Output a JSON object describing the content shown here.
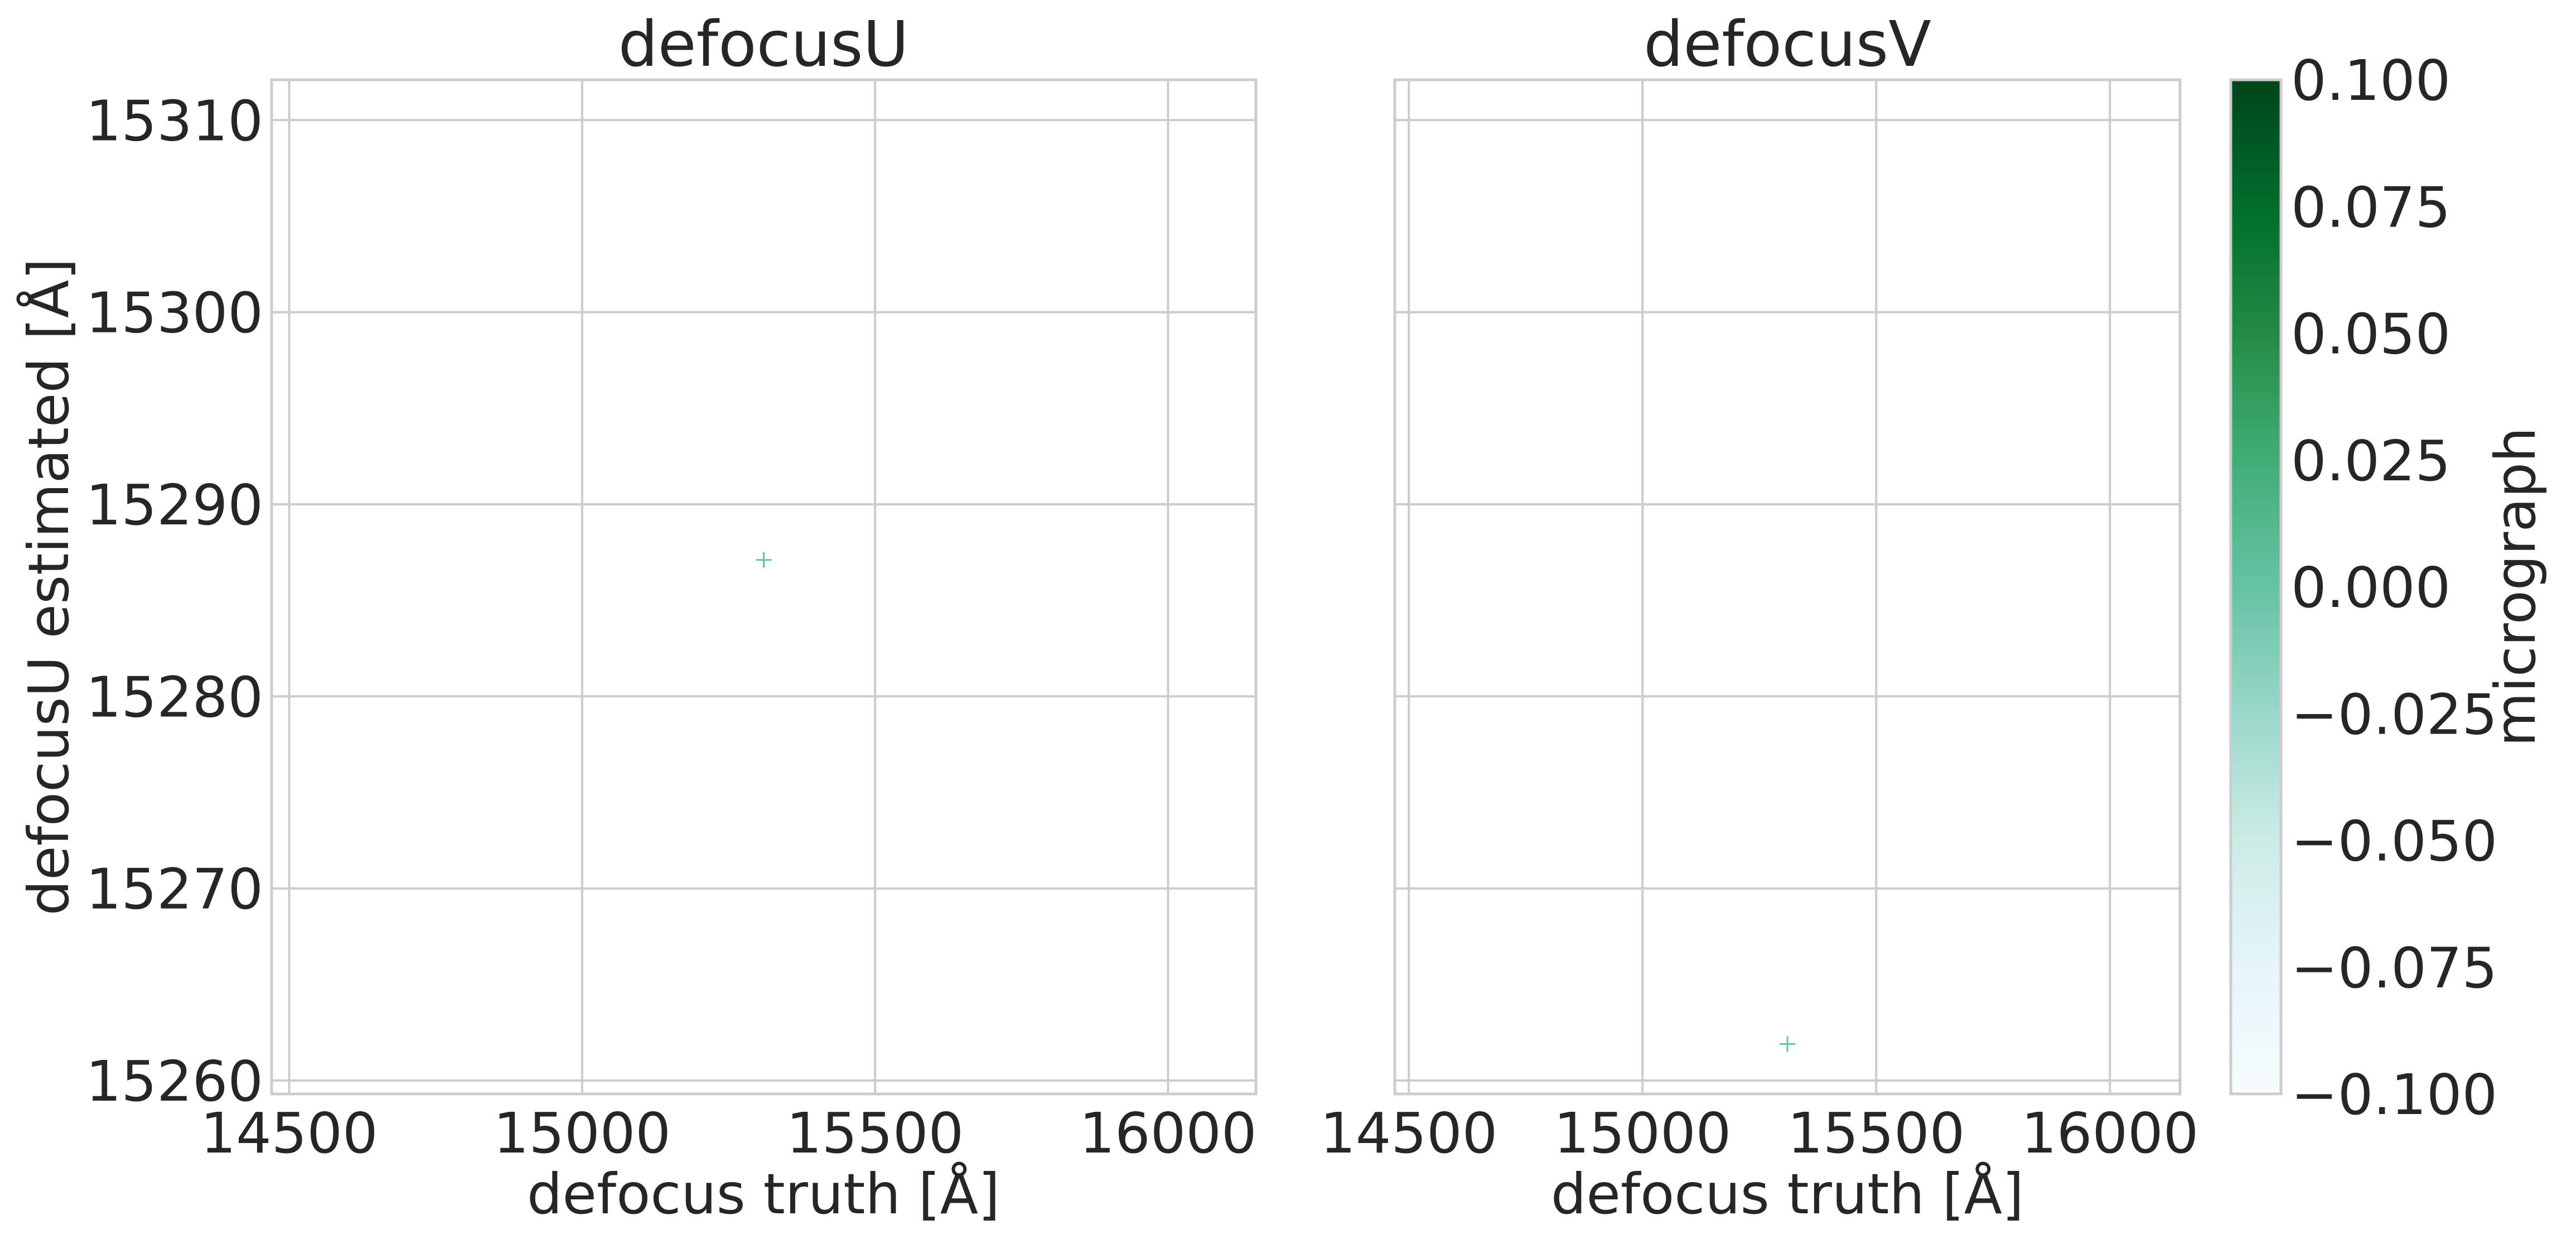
{
  "chart_data": [
    {
      "type": "scatter",
      "title": "defocusU",
      "xlabel": "defocus truth [Å]",
      "ylabel": "defocusU estimated [Å]",
      "xlim": [
        14470,
        16150
      ],
      "ylim": [
        15259.3,
        15312.1
      ],
      "xticks": [
        14500,
        15000,
        15500,
        16000
      ],
      "yticks": [
        15260,
        15270,
        15280,
        15290,
        15300,
        15310
      ],
      "marker": "+",
      "grid": true,
      "points": [
        {
          "x": 15310,
          "y": 15287.1,
          "micrograph": 0
        }
      ]
    },
    {
      "type": "scatter",
      "title": "defocusV",
      "xlabel": "defocus truth [Å]",
      "ylabel": "",
      "xlim": [
        14470,
        16150
      ],
      "ylim": [
        15259.3,
        15312.1
      ],
      "xticks": [
        14500,
        15000,
        15500,
        16000
      ],
      "yticks": [
        15260,
        15270,
        15280,
        15290,
        15300,
        15310
      ],
      "show_yticklabels": false,
      "marker": "+",
      "grid": true,
      "points": [
        {
          "x": 15310,
          "y": 15261.9,
          "micrograph": 0
        }
      ]
    }
  ],
  "colorbar": {
    "label": "micrograph",
    "colormap": "BuGn",
    "range": [
      -0.1,
      0.1
    ],
    "ticks": [
      "−0.100",
      "−0.075",
      "−0.050",
      "−0.025",
      "0.000",
      "0.025",
      "0.050",
      "0.075",
      "0.100"
    ],
    "colors": [
      "#f7fcfd",
      "#e5f5f9",
      "#ccece6",
      "#99d8c9",
      "#66c2a4",
      "#41ae76",
      "#238b45",
      "#006d2c",
      "#00441b"
    ]
  }
}
